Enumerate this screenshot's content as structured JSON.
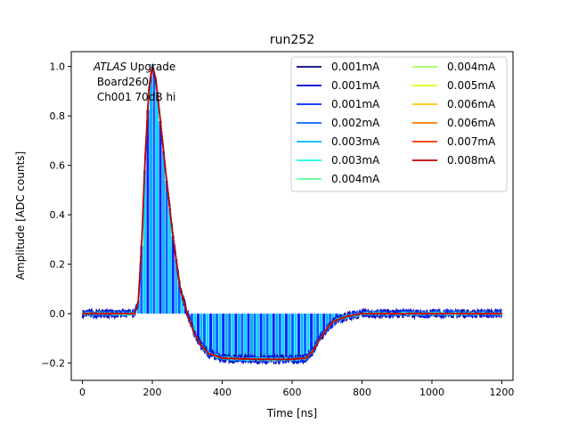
{
  "chart_data": {
    "type": "line",
    "title": "run252",
    "xlabel": "Time [ns]",
    "ylabel": "Amplitude [ADC counts]",
    "xlim": [
      -32,
      1232
    ],
    "ylim": [
      -0.27,
      1.06
    ],
    "xticks": [
      0,
      200,
      400,
      600,
      800,
      1000,
      1200
    ],
    "yticks": [
      -0.2,
      0.0,
      0.2,
      0.4,
      0.6,
      0.8,
      1.0
    ],
    "xtick_labels": [
      "0",
      "200",
      "400",
      "600",
      "800",
      "1000",
      "1200"
    ],
    "ytick_labels": [
      "−0.2",
      "0.0",
      "0.2",
      "0.4",
      "0.6",
      "0.8",
      "1.0"
    ],
    "grid": false,
    "legend_location": "top-right",
    "legend_columns": 2,
    "annotation": {
      "experiment": "ATLAS",
      "experiment_suffix": " Upgrade",
      "line2": " Board260",
      "line3": " Ch001 70dB hi"
    },
    "pulse_shape_description": "normalized pulse: baseline 0 until ~155 ns, peak ~1.0 at ~200 ns, undershoot ~-0.18 from ~350 ns to ~640 ns, recovery to ~0 by ~780 ns",
    "pulse_points": [
      [
        0,
        0.0
      ],
      [
        150,
        0.0
      ],
      [
        160,
        0.05
      ],
      [
        170,
        0.3
      ],
      [
        180,
        0.65
      ],
      [
        190,
        0.9
      ],
      [
        200,
        1.0
      ],
      [
        210,
        0.95
      ],
      [
        220,
        0.82
      ],
      [
        240,
        0.55
      ],
      [
        260,
        0.3
      ],
      [
        280,
        0.1
      ],
      [
        300,
        0.0
      ],
      [
        320,
        -0.08
      ],
      [
        340,
        -0.13
      ],
      [
        360,
        -0.16
      ],
      [
        400,
        -0.18
      ],
      [
        500,
        -0.185
      ],
      [
        600,
        -0.185
      ],
      [
        640,
        -0.18
      ],
      [
        660,
        -0.15
      ],
      [
        680,
        -0.1
      ],
      [
        700,
        -0.06
      ],
      [
        720,
        -0.03
      ],
      [
        760,
        -0.01
      ],
      [
        800,
        0.0
      ],
      [
        1200,
        0.0
      ]
    ],
    "series": [
      {
        "name": "0.001mA",
        "color": "#00007f"
      },
      {
        "name": "0.001mA",
        "color": "#0000d0"
      },
      {
        "name": "0.001mA",
        "color": "#0024ff"
      },
      {
        "name": "0.002mA",
        "color": "#0064ff"
      },
      {
        "name": "0.003mA",
        "color": "#00b4ff"
      },
      {
        "name": "0.003mA",
        "color": "#1affe0"
      },
      {
        "name": "0.004mA",
        "color": "#5affa0"
      },
      {
        "name": "0.004mA",
        "color": "#a0ff5a"
      },
      {
        "name": "0.005mA",
        "color": "#e0ff16"
      },
      {
        "name": "0.006mA",
        "color": "#ffc400"
      },
      {
        "name": "0.006mA",
        "color": "#ff7a00"
      },
      {
        "name": "0.007mA",
        "color": "#ff2c00"
      },
      {
        "name": "0.008mA",
        "color": "#c00000"
      }
    ]
  }
}
